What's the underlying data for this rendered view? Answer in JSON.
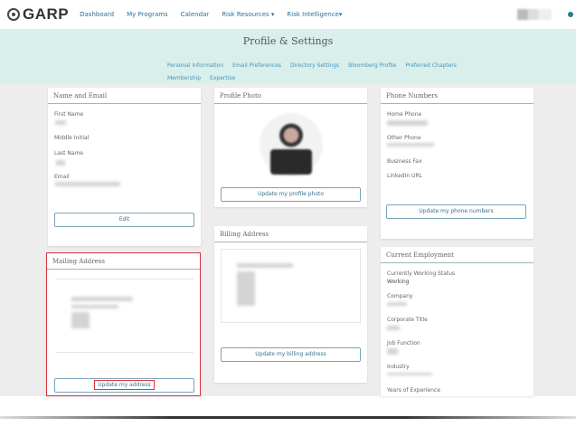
{
  "nav": {
    "logo": "GARP",
    "links": [
      "Dashboard",
      "My Programs",
      "Calendar",
      "Risk Resources ▾",
      "Risk Intelligence▾"
    ]
  },
  "header": {
    "title": "Profile & Settings",
    "links": [
      "Personal Information",
      "Email Preferences",
      "Directory Settings",
      "Bloomberg Profile",
      "Preferred Chapters",
      "Membership",
      "Expertise"
    ]
  },
  "name_email": {
    "title": "Name and Email",
    "labels": [
      "First Name",
      "Middle Initial",
      "Last Name",
      "Email"
    ],
    "button": "Edit"
  },
  "mailing": {
    "title": "Mailing Address",
    "button": "Update my address",
    "highlight_color": "#d9363e"
  },
  "photo": {
    "title": "Profile Photo",
    "button": "Update my profile photo"
  },
  "billing": {
    "title": "Billing Address",
    "button": "Update my billing address"
  },
  "phone": {
    "title": "Phone Numbers",
    "labels": [
      "Home Phone",
      "Other Phone",
      "Business Fax",
      "LinkedIn URL"
    ],
    "button": "Update my phone numbers"
  },
  "employment": {
    "title": "Current Employment",
    "labels": [
      "Currently Working Status",
      "Company",
      "Corporate Title",
      "Job Function",
      "Industry",
      "Years of Experience"
    ],
    "status_value": "Working"
  }
}
